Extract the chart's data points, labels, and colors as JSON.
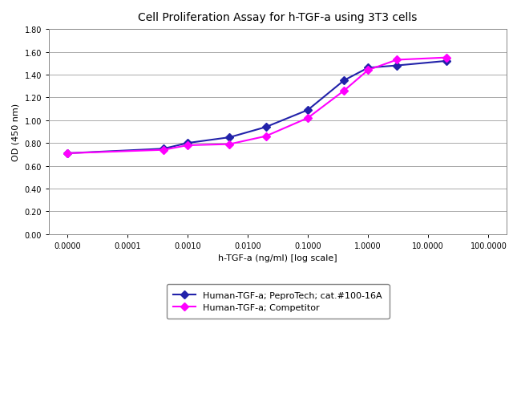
{
  "title": "Cell Proliferation Assay for h-TGF-a using 3T3 cells",
  "xlabel": "h-TGF-a (ng/ml) [log scale]",
  "ylabel": "OD (450 nm)",
  "xlim_log": [
    -4,
    2
  ],
  "ylim": [
    0.0,
    1.8
  ],
  "yticks": [
    0.0,
    0.2,
    0.4,
    0.6,
    0.8,
    1.0,
    1.2,
    1.4,
    1.6,
    1.8
  ],
  "xtick_labels": [
    "0.0000",
    "0.0001",
    "0.0010",
    "0.0100",
    "0.1000",
    "1.0000",
    "10.0000",
    "100.0000"
  ],
  "xtick_positions": [
    1e-05,
    0.0001,
    0.001,
    0.01,
    0.1,
    1.0,
    10.0,
    100.0
  ],
  "series1_name": "Human-TGF-a; PeproTech; cat.#100-16A",
  "series1_color": "#2222aa",
  "series1_x": [
    1e-05,
    0.0004,
    0.001,
    0.005,
    0.02,
    0.1,
    0.4,
    1.0,
    3.0,
    20.0
  ],
  "series1_y": [
    0.71,
    0.75,
    0.8,
    0.85,
    0.94,
    1.09,
    1.35,
    1.46,
    1.48,
    1.52
  ],
  "series2_name": "Human-TGF-a; Competitor",
  "series2_color": "#ff00ff",
  "series2_x": [
    1e-05,
    0.0004,
    0.001,
    0.005,
    0.02,
    0.1,
    0.4,
    1.0,
    3.0,
    20.0
  ],
  "series2_y": [
    0.71,
    0.74,
    0.78,
    0.79,
    0.86,
    1.02,
    1.26,
    1.44,
    1.53,
    1.55
  ],
  "bg_color": "#ffffff",
  "plot_bg_color": "#ffffff",
  "grid_color": "#aaaaaa",
  "title_fontsize": 10,
  "axis_label_fontsize": 8,
  "tick_fontsize": 7,
  "legend_fontsize": 8,
  "marker": "D",
  "markersize": 5,
  "linewidth": 1.5
}
